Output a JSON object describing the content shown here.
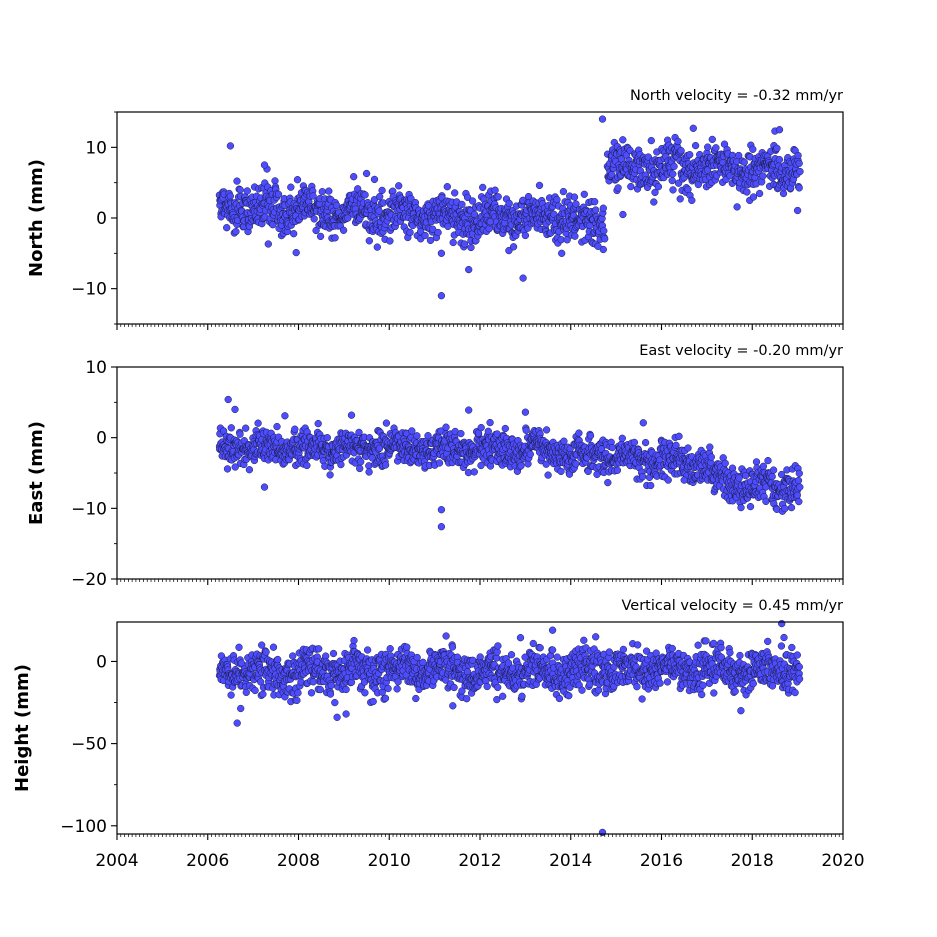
{
  "chart_data": [
    {
      "type": "scatter",
      "title": "North velocity = -0.32 mm/yr",
      "ylabel": "North (mm)",
      "xlim": [
        2004,
        2020
      ],
      "ylim": [
        -15,
        15
      ],
      "yticks": [
        -10,
        0,
        10
      ],
      "ytick_labels": [
        "−10",
        "0",
        "10"
      ],
      "x_range": [
        2006.25,
        2019.05
      ],
      "segments": [
        {
          "x": [
            2006.25,
            2014.75
          ],
          "y_start": 1.5,
          "y_end": -0.5,
          "scatter": 1.6
        },
        {
          "x": [
            2014.8,
            2019.05
          ],
          "y_start": 7.5,
          "y_end": 6.5,
          "scatter": 1.6
        }
      ],
      "outliers": [
        {
          "x": 2006.5,
          "y": 10.2
        },
        {
          "x": 2007.25,
          "y": 7.5
        },
        {
          "x": 2009.5,
          "y": 6.3
        },
        {
          "x": 2011.15,
          "y": -11
        },
        {
          "x": 2011.75,
          "y": -7.3
        },
        {
          "x": 2012.95,
          "y": -8.5
        },
        {
          "x": 2011.15,
          "y": -5
        },
        {
          "x": 2014.7,
          "y": 14
        },
        {
          "x": 2014.6,
          "y": -4
        },
        {
          "x": 2015.15,
          "y": 0.5
        },
        {
          "x": 2016.7,
          "y": 12.7
        },
        {
          "x": 2018.5,
          "y": 12.3
        },
        {
          "x": 2018.6,
          "y": 12.5
        },
        {
          "x": 2013.8,
          "y": -5
        }
      ]
    },
    {
      "type": "scatter",
      "title": "East velocity = -0.20 mm/yr",
      "ylabel": "East (mm)",
      "xlim": [
        2004,
        2020
      ],
      "ylim": [
        -20,
        10
      ],
      "yticks": [
        -20,
        -10,
        0,
        10
      ],
      "ytick_labels": [
        "−20",
        "−10",
        "0",
        "10"
      ],
      "x_range": [
        2006.25,
        2019.05
      ],
      "segments": [
        {
          "x": [
            2006.25,
            2013.3
          ],
          "y_start": -1.3,
          "y_end": -1.6,
          "scatter": 1.2
        },
        {
          "x": [
            2013.3,
            2017.1
          ],
          "y_start": -1.8,
          "y_end": -4.0,
          "scatter": 1.3
        },
        {
          "x": [
            2017.1,
            2019.05
          ],
          "y_start": -6.0,
          "y_end": -7.5,
          "scatter": 1.3
        }
      ],
      "outliers": [
        {
          "x": 2006.45,
          "y": 5.4
        },
        {
          "x": 2006.6,
          "y": 4.0
        },
        {
          "x": 2007.25,
          "y": -7.0
        },
        {
          "x": 2007.7,
          "y": 3.1
        },
        {
          "x": 2011.15,
          "y": -10.2
        },
        {
          "x": 2011.15,
          "y": -12.6
        },
        {
          "x": 2011.75,
          "y": 3.9
        },
        {
          "x": 2013.0,
          "y": 3.6
        },
        {
          "x": 2015.6,
          "y": 2.1
        },
        {
          "x": 2016.5,
          "y": -6.0
        },
        {
          "x": 2013.5,
          "y": -5.3
        }
      ]
    },
    {
      "type": "scatter",
      "title": "Vertical velocity = 0.45 mm/yr",
      "ylabel": "Height (mm)",
      "xlim": [
        2004,
        2020
      ],
      "ylim": [
        -105,
        24
      ],
      "yticks": [
        -100,
        -50,
        0
      ],
      "ytick_labels": [
        "−100",
        "−50",
        "0"
      ],
      "x_range": [
        2006.25,
        2019.05
      ],
      "segments": [
        {
          "x": [
            2006.25,
            2019.05
          ],
          "y_start": -7,
          "y_end": -4,
          "scatter": 6.5
        }
      ],
      "outliers": [
        {
          "x": 2006.65,
          "y": -37.5
        },
        {
          "x": 2008.85,
          "y": -34
        },
        {
          "x": 2013.6,
          "y": 19
        },
        {
          "x": 2014.7,
          "y": -104
        },
        {
          "x": 2018.65,
          "y": 23
        },
        {
          "x": 2014.55,
          "y": 15
        },
        {
          "x": 2017.75,
          "y": -30
        },
        {
          "x": 2011.4,
          "y": -27
        },
        {
          "x": 2009.05,
          "y": -32
        }
      ]
    }
  ],
  "x_axis": {
    "ticks": [
      2004,
      2006,
      2008,
      2010,
      2012,
      2014,
      2016,
      2018,
      2020
    ],
    "tick_labels": [
      "2004",
      "2006",
      "2008",
      "2010",
      "2012",
      "2014",
      "2016",
      "2018",
      "2020"
    ],
    "minor_per_year": 12
  },
  "colors": {
    "marker_fill": "#4d4dff",
    "marker_edge": "#1a1a40"
  }
}
